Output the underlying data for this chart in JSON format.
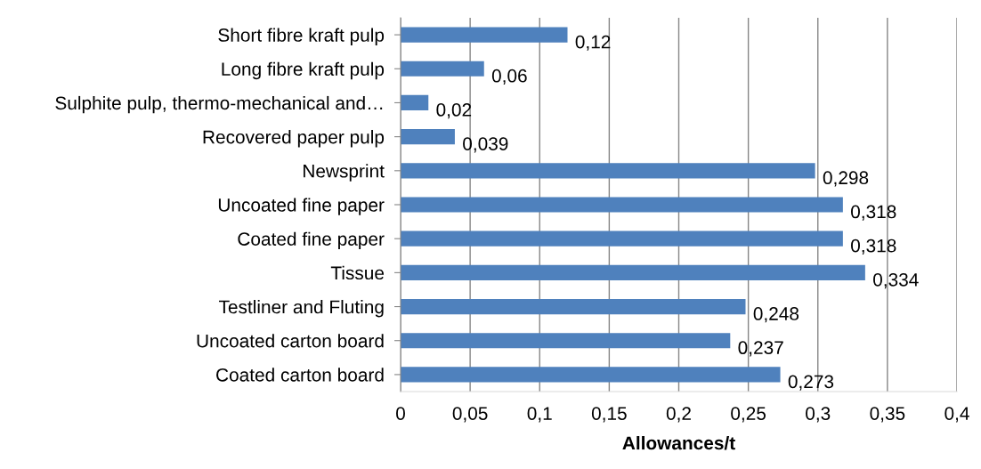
{
  "chart_data": {
    "type": "bar",
    "orientation": "horizontal",
    "xlabel": "Allowances/t",
    "categories": [
      "Short fibre kraft pulp",
      "Long fibre kraft pulp",
      "Sulphite pulp, thermo-mechanical and…",
      "Recovered paper pulp",
      "Newsprint",
      "Uncoated fine paper",
      "Coated fine paper",
      "Tissue",
      "Testliner and Fluting",
      "Uncoated carton board",
      "Coated carton board"
    ],
    "values": [
      0.12,
      0.06,
      0.02,
      0.039,
      0.298,
      0.318,
      0.318,
      0.334,
      0.248,
      0.237,
      0.273
    ],
    "value_labels": [
      "0,12",
      "0,06",
      "0,02",
      "0,039",
      "0,298",
      "0,318",
      "0,318",
      "0,334",
      "0,248",
      "0,237",
      "0,273"
    ],
    "color": "#4f81bd",
    "xlim": [
      0,
      0.4
    ],
    "xticks": [
      0,
      {
        "value": 0.05,
        "label": "0,05"
      },
      {
        "value": 0.1,
        "label": "0,1"
      },
      {
        "value": 0.15,
        "label": "0,15"
      },
      {
        "value": 0.2,
        "label": "0,2"
      },
      {
        "value": 0.25,
        "label": "0,25"
      },
      {
        "value": 0.3,
        "label": "0,3"
      },
      {
        "value": 0.35,
        "label": "0,35"
      },
      {
        "value": 0.4,
        "label": "0,4"
      }
    ],
    "grid": "x",
    "legend": false
  }
}
